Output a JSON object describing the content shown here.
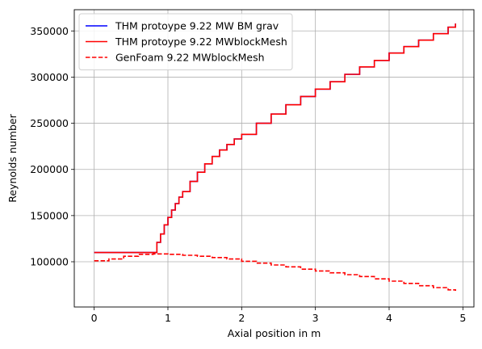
{
  "chart_data": {
    "type": "line",
    "xlabel": "Axial position in m",
    "ylabel": "Reynolds number",
    "xlim": [
      -0.27,
      5.15
    ],
    "ylim": [
      51000,
      373000
    ],
    "xticks": [
      0,
      1,
      2,
      3,
      4,
      5
    ],
    "yticks": [
      100000,
      150000,
      200000,
      250000,
      300000,
      350000
    ],
    "grid": true,
    "legend_position": "top-left",
    "series": [
      {
        "name": "THM protoype 9.22 MW BM grav",
        "color": "#0000ff",
        "style": "solid",
        "step": true,
        "x": [
          0,
          0.8,
          0.8,
          0.85,
          0.9,
          0.95,
          1.0,
          1.05,
          1.1,
          1.15,
          1.2,
          1.3,
          1.4,
          1.5,
          1.6,
          1.7,
          1.8,
          1.9,
          2.0,
          2.2,
          2.4,
          2.6,
          2.8,
          3.0,
          3.2,
          3.4,
          3.6,
          3.8,
          4.0,
          4.2,
          4.4,
          4.6,
          4.8,
          4.9
        ],
        "y": [
          110000,
          110000,
          110000,
          121000,
          130000,
          140000,
          148000,
          156000,
          163000,
          170000,
          176000,
          187000,
          197000,
          206000,
          214000,
          221000,
          227000,
          233000,
          238000,
          250000,
          260000,
          270000,
          279000,
          287000,
          295000,
          303000,
          311000,
          318000,
          326000,
          333000,
          340000,
          347000,
          354000,
          358000
        ]
      },
      {
        "name": "THM protoype 9.22 MWblockMesh",
        "color": "#ff0000",
        "style": "solid",
        "step": true,
        "x": [
          0,
          0.8,
          0.8,
          0.85,
          0.9,
          0.95,
          1.0,
          1.05,
          1.1,
          1.15,
          1.2,
          1.3,
          1.4,
          1.5,
          1.6,
          1.7,
          1.8,
          1.9,
          2.0,
          2.2,
          2.4,
          2.6,
          2.8,
          3.0,
          3.2,
          3.4,
          3.6,
          3.8,
          4.0,
          4.2,
          4.4,
          4.6,
          4.8,
          4.9
        ],
        "y": [
          110000,
          110000,
          110000,
          121000,
          130000,
          140000,
          148000,
          156000,
          163000,
          170000,
          176000,
          187000,
          197000,
          206000,
          214000,
          221000,
          227000,
          233000,
          238000,
          250000,
          260000,
          270000,
          279000,
          287000,
          295000,
          303000,
          311000,
          318000,
          326000,
          333000,
          340000,
          347000,
          354000,
          358000
        ]
      },
      {
        "name": "GenFoam 9.22 MWblockMesh",
        "color": "#ff0000",
        "style": "dashed",
        "step": true,
        "x": [
          0,
          0.2,
          0.4,
          0.6,
          0.8,
          1.0,
          1.2,
          1.4,
          1.6,
          1.8,
          2.0,
          2.2,
          2.4,
          2.6,
          2.8,
          3.0,
          3.2,
          3.4,
          3.6,
          3.8,
          4.0,
          4.2,
          4.4,
          4.6,
          4.8,
          4.9
        ],
        "y": [
          101000,
          103000,
          106000,
          108000,
          108500,
          108000,
          107000,
          106000,
          104500,
          103000,
          100500,
          98500,
          96500,
          94500,
          92000,
          90000,
          88000,
          86000,
          84000,
          81500,
          79000,
          76500,
          74000,
          72000,
          69500,
          68500
        ]
      }
    ]
  }
}
